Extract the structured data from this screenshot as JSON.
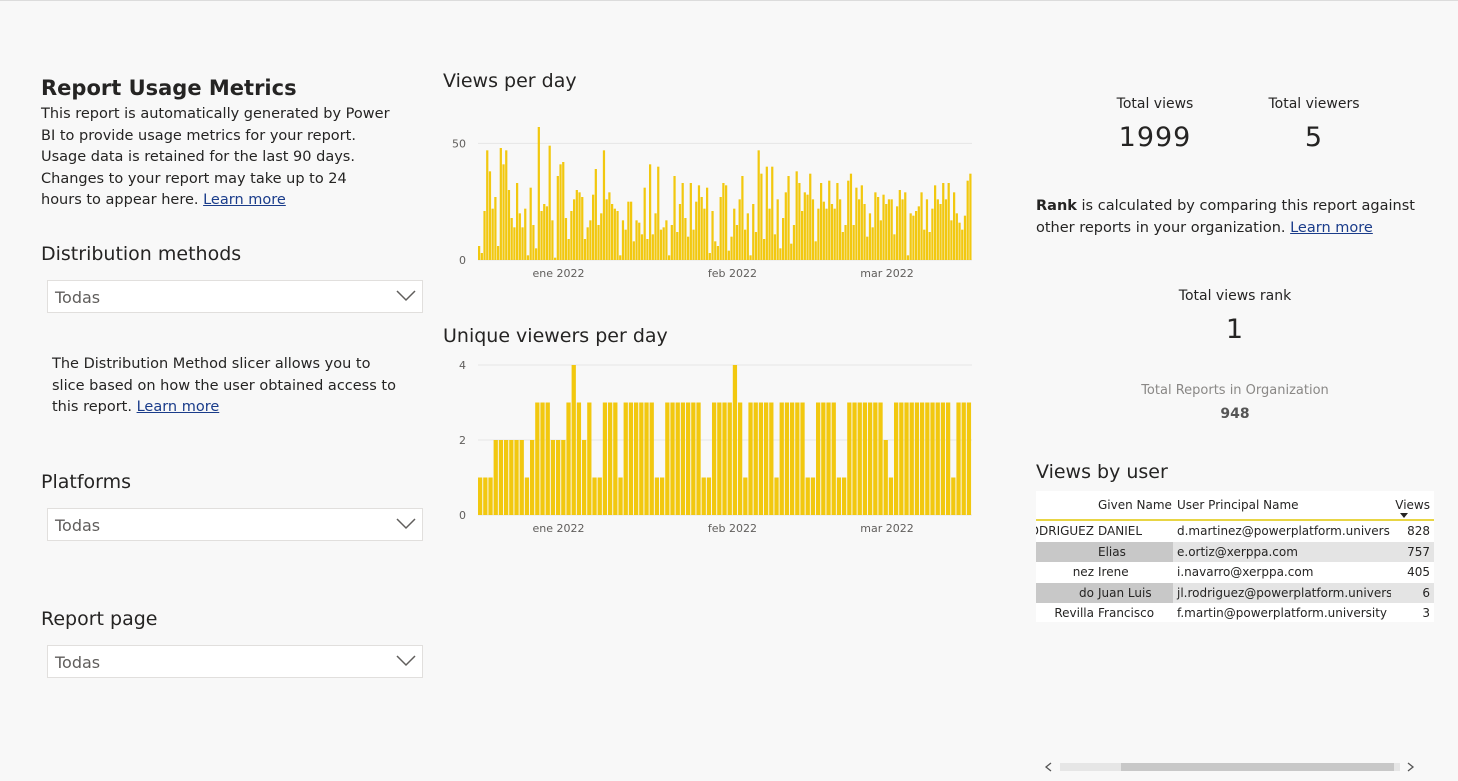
{
  "header": {
    "title": "Report Usage Metrics",
    "intro": "This report is automatically generated by Power BI to provide usage metrics for your report. Usage data is retained for the last 90 days. Changes to your report may take up to 24 hours to appear here.",
    "learn_more": "Learn more"
  },
  "filters": {
    "distribution": {
      "title": "Distribution methods",
      "value": "Todas"
    },
    "distribution_help": {
      "text": "The Distribution Method slicer allows you to slice based on how the user obtained access to this report.",
      "learn_more": "Learn more"
    },
    "platforms": {
      "title": "Platforms",
      "value": "Todas"
    },
    "report_page": {
      "title": "Report page",
      "value": "Todas"
    }
  },
  "views_chart": {
    "title": "Views per day"
  },
  "viewers_chart": {
    "title": "Unique viewers per day"
  },
  "kpis": {
    "total_views_label": "Total views",
    "total_views": "1999",
    "total_viewers_label": "Total viewers",
    "total_viewers": "5"
  },
  "rank": {
    "bold": "Rank",
    "text": " is calculated by comparing this report against other reports in your organization.",
    "learn_more": "Learn more",
    "rank_label": "Total views rank",
    "rank_value": "1",
    "total_reports_label": "Total Reports in Organization",
    "total_reports_value": "948"
  },
  "views_by_user": {
    "title": "Views by user",
    "columns": [
      "Given Name",
      "User Principal Name",
      "Views"
    ],
    "rows": [
      {
        "surname": "RODRIGUEZ",
        "given": "DANIEL",
        "upn": "d.martinez@powerplatform.university",
        "views": "828"
      },
      {
        "surname": "",
        "given": "Elias",
        "upn": "e.ortiz@xerppa.com",
        "views": "757"
      },
      {
        "surname": "nez",
        "given": "Irene",
        "upn": "i.navarro@xerppa.com",
        "views": "405"
      },
      {
        "surname": "do",
        "given": "Juan Luis",
        "upn": "jl.rodriguez@powerplatform.university",
        "views": "6"
      },
      {
        "surname": "Revilla",
        "given": "Francisco",
        "upn": "f.martin@powerplatform.university",
        "views": "3"
      }
    ]
  },
  "colors": {
    "bar": "#f2c80f",
    "grid": "#e6e6e6",
    "link": "#1a3c8a"
  },
  "icons": [
    "chevron-down-icon",
    "scroll-left-arrow-icon",
    "scroll-right-arrow-icon",
    "sort-descending-icon"
  ],
  "chart_data": [
    {
      "type": "bar",
      "title": "Views per day",
      "x_tick_labels": [
        "ene 2022",
        "feb 2022",
        "mar 2022"
      ],
      "y_tick_labels": [
        "0",
        "50"
      ],
      "ylim": [
        0,
        60
      ],
      "grid": true,
      "values": [
        6,
        3,
        21,
        47,
        38,
        22,
        27,
        6,
        48,
        41,
        47,
        30,
        18,
        14,
        33,
        20,
        14,
        22,
        2,
        31,
        15,
        5,
        57,
        21,
        24,
        23,
        49,
        17,
        1,
        36,
        41,
        42,
        18,
        9,
        21,
        26,
        30,
        29,
        27,
        9,
        14,
        17,
        28,
        39,
        15,
        20,
        47,
        26,
        29,
        24,
        22,
        21,
        2,
        17,
        13,
        25,
        25,
        8,
        17,
        16,
        11,
        31,
        9,
        41,
        11,
        20,
        40,
        13,
        14,
        17,
        2,
        15,
        36,
        12,
        24,
        33,
        18,
        10,
        33,
        13,
        25,
        32,
        27,
        22,
        31,
        3,
        21,
        8,
        6,
        27,
        33,
        32,
        4,
        10,
        22,
        15,
        26,
        36,
        13,
        20,
        2,
        24,
        12,
        47,
        37,
        9,
        40,
        22,
        40,
        11,
        26,
        5,
        18,
        29,
        36,
        7,
        15,
        38,
        33,
        21,
        29,
        28,
        37,
        26,
        8,
        22,
        33,
        25,
        22,
        34,
        24,
        22,
        33,
        26,
        12,
        15,
        34,
        37,
        15,
        31,
        26,
        32,
        24,
        10,
        20,
        14,
        29,
        27,
        17,
        28,
        24,
        26,
        26,
        11,
        23,
        30,
        26,
        29,
        2,
        20,
        19,
        21,
        23,
        29,
        13,
        26,
        12,
        22,
        32,
        26,
        24,
        33,
        26,
        33,
        17,
        29,
        20,
        16,
        13,
        19,
        34,
        37
      ]
    },
    {
      "type": "bar",
      "title": "Unique viewers per day",
      "x_tick_labels": [
        "ene 2022",
        "feb 2022",
        "mar 2022"
      ],
      "y_tick_labels": [
        "0",
        "2",
        "4"
      ],
      "ylim": [
        0,
        4
      ],
      "grid": true,
      "values": [
        1,
        1,
        1,
        2,
        2,
        2,
        2,
        2,
        2,
        1,
        2,
        3,
        3,
        3,
        2,
        2,
        2,
        3,
        4,
        3,
        2,
        3,
        1,
        1,
        3,
        3,
        3,
        1,
        3,
        3,
        3,
        3,
        3,
        3,
        1,
        1,
        3,
        3,
        3,
        3,
        3,
        3,
        3,
        1,
        1,
        3,
        3,
        3,
        3,
        4,
        3,
        1,
        3,
        3,
        3,
        3,
        3,
        1,
        3,
        3,
        3,
        3,
        3,
        1,
        1,
        3,
        3,
        3,
        3,
        1,
        1,
        3,
        3,
        3,
        3,
        3,
        3,
        3,
        2,
        1,
        3,
        3,
        3,
        3,
        3,
        3,
        3,
        3,
        3,
        3,
        3,
        1,
        3,
        3,
        3
      ]
    }
  ]
}
